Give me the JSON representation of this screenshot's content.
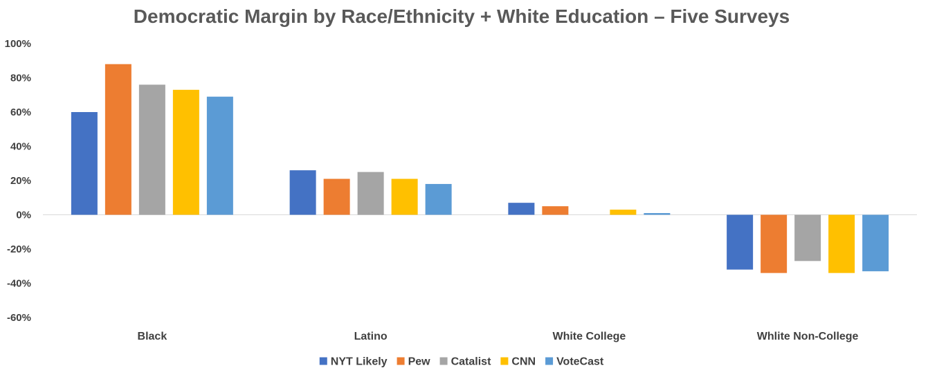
{
  "chart_data": {
    "type": "bar",
    "title": "Democratic Margin by Race/Ethnicity + White Education – Five Surveys",
    "xlabel": "",
    "ylabel": "",
    "categories": [
      "Black",
      "Latino",
      "White College",
      "Whlite Non-College"
    ],
    "ylim": [
      -60,
      100
    ],
    "yticks": [
      100,
      80,
      60,
      40,
      20,
      0,
      -20,
      -40,
      -60
    ],
    "ytick_labels": [
      "100%",
      "80%",
      "60%",
      "40%",
      "20%",
      "0%",
      "-20%",
      "-40%",
      "-60%"
    ],
    "grid": false,
    "legend_position": "bottom",
    "series": [
      {
        "name": "NYT Likely",
        "color": "#4472C4",
        "values": [
          60,
          26,
          7,
          -32
        ]
      },
      {
        "name": "Pew",
        "color": "#ED7D31",
        "values": [
          88,
          21,
          5,
          -34
        ]
      },
      {
        "name": "Catalist",
        "color": "#A5A5A5",
        "values": [
          76,
          25,
          0,
          -27
        ]
      },
      {
        "name": "CNN",
        "color": "#FFC000",
        "values": [
          73,
          21,
          3,
          -34
        ]
      },
      {
        "name": "VoteCast",
        "color": "#5B9BD5",
        "values": [
          69,
          18,
          1,
          -33
        ]
      }
    ]
  }
}
